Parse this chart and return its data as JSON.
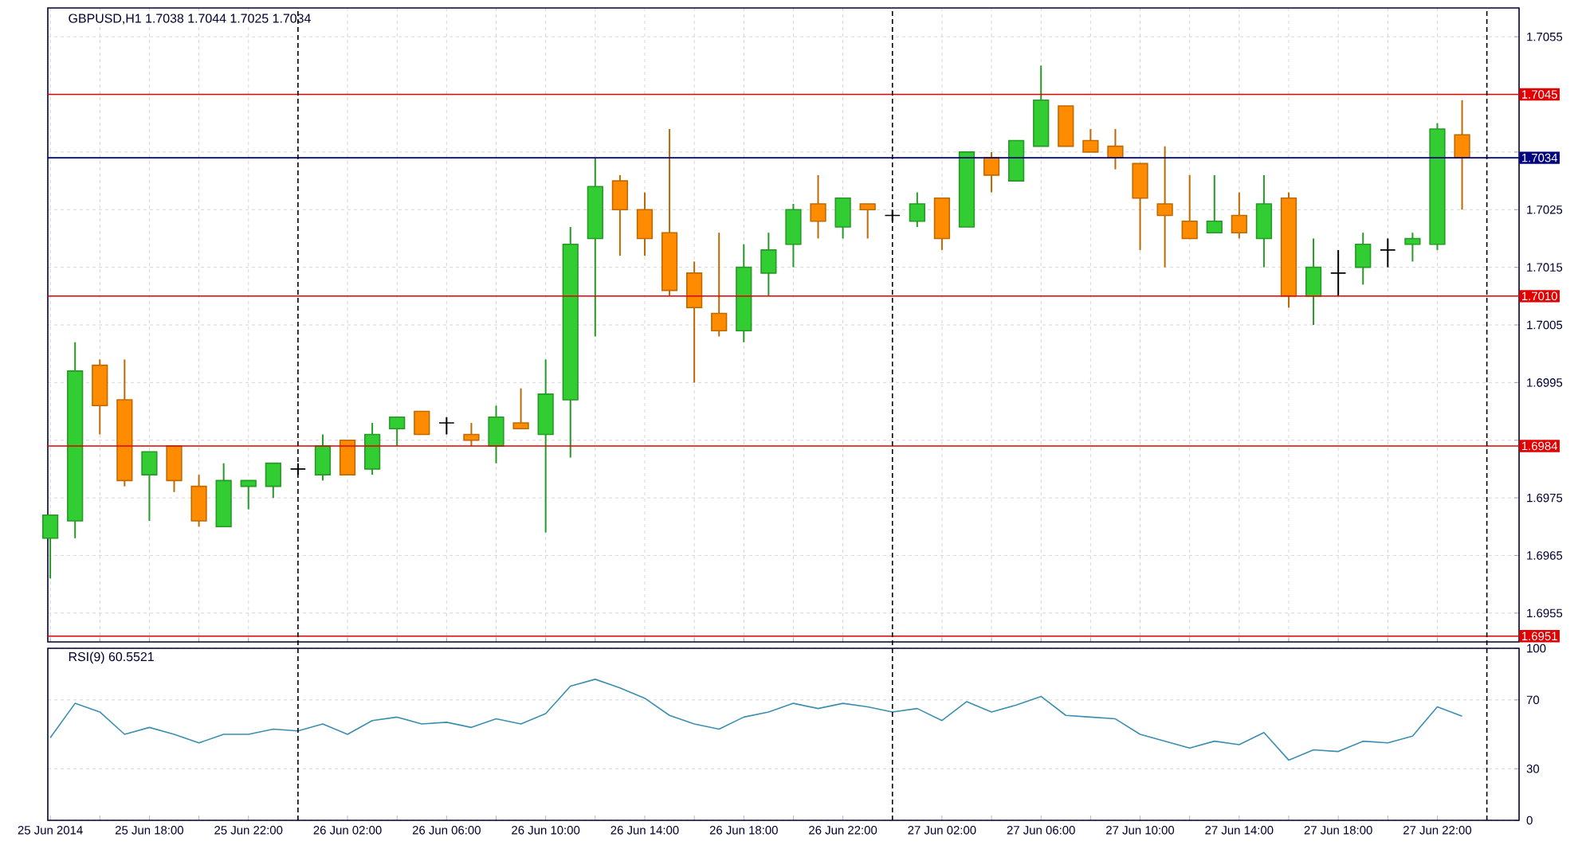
{
  "chart_data": [
    {
      "type": "candlestick",
      "title": "GBPUSD,H1  1.7038 1.7044 1.7025 1.7034",
      "x": [
        "2014-06-25T14:00",
        "2014-06-25T15:00",
        "2014-06-25T16:00",
        "2014-06-25T17:00",
        "2014-06-25T18:00",
        "2014-06-25T19:00",
        "2014-06-25T20:00",
        "2014-06-25T21:00",
        "2014-06-25T22:00",
        "2014-06-25T23:00",
        "2014-06-26T00:00",
        "2014-06-26T01:00",
        "2014-06-26T02:00",
        "2014-06-26T03:00",
        "2014-06-26T04:00",
        "2014-06-26T05:00",
        "2014-06-26T06:00",
        "2014-06-26T07:00",
        "2014-06-26T08:00",
        "2014-06-26T09:00",
        "2014-06-26T10:00",
        "2014-06-26T11:00",
        "2014-06-26T12:00",
        "2014-06-26T13:00",
        "2014-06-26T14:00",
        "2014-06-26T15:00",
        "2014-06-26T16:00",
        "2014-06-26T17:00",
        "2014-06-26T18:00",
        "2014-06-26T19:00",
        "2014-06-26T20:00",
        "2014-06-26T21:00",
        "2014-06-26T22:00",
        "2014-06-26T23:00",
        "2014-06-27T00:00",
        "2014-06-27T01:00",
        "2014-06-27T02:00",
        "2014-06-27T03:00",
        "2014-06-27T04:00",
        "2014-06-27T05:00",
        "2014-06-27T06:00",
        "2014-06-27T07:00",
        "2014-06-27T08:00",
        "2014-06-27T09:00",
        "2014-06-27T10:00",
        "2014-06-27T11:00",
        "2014-06-27T12:00",
        "2014-06-27T13:00",
        "2014-06-27T14:00",
        "2014-06-27T15:00",
        "2014-06-27T16:00",
        "2014-06-27T17:00",
        "2014-06-27T18:00",
        "2014-06-27T19:00",
        "2014-06-27T20:00",
        "2014-06-27T21:00",
        "2014-06-27T22:00",
        "2014-06-27T23:00"
      ],
      "ohlc": [
        [
          1.6968,
          1.6972,
          1.6961,
          1.6972
        ],
        [
          1.6971,
          1.7002,
          1.6968,
          1.6997
        ],
        [
          1.6998,
          1.6999,
          1.6986,
          1.6991
        ],
        [
          1.6992,
          1.6999,
          1.6977,
          1.6978
        ],
        [
          1.6979,
          1.6983,
          1.6971,
          1.6983
        ],
        [
          1.6984,
          1.6984,
          1.6976,
          1.6978
        ],
        [
          1.6977,
          1.6979,
          1.697,
          1.6971
        ],
        [
          1.697,
          1.6981,
          1.697,
          1.6978
        ],
        [
          1.6977,
          1.6978,
          1.6973,
          1.6978
        ],
        [
          1.6977,
          1.6981,
          1.6975,
          1.6981
        ],
        [
          1.698,
          1.6981,
          1.6979,
          1.698
        ],
        [
          1.6979,
          1.6986,
          1.6978,
          1.6984
        ],
        [
          1.6985,
          1.6985,
          1.6979,
          1.6979
        ],
        [
          1.698,
          1.6988,
          1.6979,
          1.6986
        ],
        [
          1.6987,
          1.6989,
          1.6984,
          1.6989
        ],
        [
          1.699,
          1.699,
          1.6986,
          1.6986
        ],
        [
          1.6988,
          1.6989,
          1.6986,
          1.6988
        ],
        [
          1.6986,
          1.6988,
          1.6984,
          1.6985
        ],
        [
          1.6984,
          1.6991,
          1.6981,
          1.6989
        ],
        [
          1.6988,
          1.6994,
          1.6987,
          1.6987
        ],
        [
          1.6986,
          1.6999,
          1.6969,
          1.6993
        ],
        [
          1.6992,
          1.7022,
          1.6982,
          1.7019
        ],
        [
          1.702,
          1.7034,
          1.7003,
          1.7029
        ],
        [
          1.703,
          1.7031,
          1.7017,
          1.7025
        ],
        [
          1.7025,
          1.7028,
          1.7017,
          1.702
        ],
        [
          1.7021,
          1.7039,
          1.701,
          1.7011
        ],
        [
          1.7014,
          1.7016,
          1.6995,
          1.7008
        ],
        [
          1.7007,
          1.7021,
          1.7003,
          1.7004
        ],
        [
          1.7004,
          1.7019,
          1.7002,
          1.7015
        ],
        [
          1.7014,
          1.7021,
          1.701,
          1.7018
        ],
        [
          1.7019,
          1.7026,
          1.7015,
          1.7025
        ],
        [
          1.7026,
          1.7031,
          1.702,
          1.7023
        ],
        [
          1.7022,
          1.7027,
          1.702,
          1.7027
        ],
        [
          1.7026,
          1.7026,
          1.702,
          1.7025
        ],
        [
          1.7024,
          1.7025,
          1.7023,
          1.7024
        ],
        [
          1.7023,
          1.7028,
          1.7022,
          1.7026
        ],
        [
          1.7027,
          1.7027,
          1.7018,
          1.702
        ],
        [
          1.7022,
          1.7035,
          1.7022,
          1.7035
        ],
        [
          1.7034,
          1.7035,
          1.7028,
          1.7031
        ],
        [
          1.703,
          1.7037,
          1.703,
          1.7037
        ],
        [
          1.7036,
          1.705,
          1.7036,
          1.7044
        ],
        [
          1.7043,
          1.7043,
          1.7036,
          1.7036
        ],
        [
          1.7037,
          1.7039,
          1.7035,
          1.7035
        ],
        [
          1.7036,
          1.7039,
          1.7032,
          1.7034
        ],
        [
          1.7033,
          1.7033,
          1.7018,
          1.7027
        ],
        [
          1.7026,
          1.7036,
          1.7015,
          1.7024
        ],
        [
          1.7023,
          1.7031,
          1.702,
          1.702
        ],
        [
          1.7021,
          1.7031,
          1.7021,
          1.7023
        ],
        [
          1.7024,
          1.7028,
          1.702,
          1.7021
        ],
        [
          1.702,
          1.7031,
          1.7015,
          1.7026
        ],
        [
          1.7027,
          1.7028,
          1.7008,
          1.701
        ],
        [
          1.701,
          1.702,
          1.7005,
          1.7015
        ],
        [
          1.7014,
          1.7018,
          1.701,
          1.7014
        ],
        [
          1.7015,
          1.7021,
          1.7012,
          1.7019
        ],
        [
          1.7018,
          1.702,
          1.7015,
          1.7018
        ],
        [
          1.7019,
          1.7021,
          1.7016,
          1.702
        ],
        [
          1.7019,
          1.704,
          1.7018,
          1.7039
        ],
        [
          1.7038,
          1.7044,
          1.7025,
          1.7034
        ]
      ],
      "colors": [
        "#32cd32",
        "#32cd32",
        "#ff8c00",
        "#ff8c00",
        "#32cd32",
        "#ff8c00",
        "#ff8c00",
        "#32cd32",
        "#32cd32",
        "#32cd32",
        "#000000",
        "#32cd32",
        "#ff8c00",
        "#32cd32",
        "#32cd32",
        "#ff8c00",
        "#000000",
        "#ff8c00",
        "#32cd32",
        "#ff8c00",
        "#32cd32",
        "#32cd32",
        "#32cd32",
        "#ff8c00",
        "#ff8c00",
        "#ff8c00",
        "#ff8c00",
        "#ff8c00",
        "#32cd32",
        "#32cd32",
        "#32cd32",
        "#ff8c00",
        "#32cd32",
        "#ff8c00",
        "#000000",
        "#32cd32",
        "#ff8c00",
        "#32cd32",
        "#ff8c00",
        "#32cd32",
        "#32cd32",
        "#ff8c00",
        "#ff8c00",
        "#ff8c00",
        "#ff8c00",
        "#ff8c00",
        "#ff8c00",
        "#32cd32",
        "#ff8c00",
        "#32cd32",
        "#ff8c00",
        "#32cd32",
        "#000000",
        "#32cd32",
        "#000000",
        "#32cd32",
        "#32cd32",
        "#ff8c00"
      ],
      "xlim": [
        "2014-06-25T13:54",
        "2014-06-28T01:18"
      ],
      "ylim": [
        1.695,
        1.706
      ],
      "xticks": [
        {
          "value": "2014-06-25T14:00",
          "label": null
        },
        {
          "value": "2014-06-25T16:00",
          "label": null
        },
        {
          "value": "2014-06-25T18:00",
          "label": null
        },
        {
          "value": "2014-06-25T20:00",
          "label": null
        },
        {
          "value": "2014-06-25T22:00",
          "label": null
        },
        {
          "value": "2014-06-26T02:00",
          "label": null
        },
        {
          "value": "2014-06-26T04:00",
          "label": null
        },
        {
          "value": "2014-06-26T06:00",
          "label": null
        },
        {
          "value": "2014-06-26T08:00",
          "label": null
        },
        {
          "value": "2014-06-26T10:00",
          "label": null
        },
        {
          "value": "2014-06-26T12:00",
          "label": null
        },
        {
          "value": "2014-06-26T14:00",
          "label": null
        },
        {
          "value": "2014-06-26T16:00",
          "label": null
        },
        {
          "value": "2014-06-26T18:00",
          "label": null
        },
        {
          "value": "2014-06-26T20:00",
          "label": null
        },
        {
          "value": "2014-06-26T22:00",
          "label": null
        },
        {
          "value": "2014-06-27T02:00",
          "label": null
        },
        {
          "value": "2014-06-27T04:00",
          "label": null
        },
        {
          "value": "2014-06-27T06:00",
          "label": null
        },
        {
          "value": "2014-06-27T08:00",
          "label": null
        },
        {
          "value": "2014-06-27T10:00",
          "label": null
        },
        {
          "value": "2014-06-27T12:00",
          "label": null
        },
        {
          "value": "2014-06-27T14:00",
          "label": null
        },
        {
          "value": "2014-06-27T16:00",
          "label": null
        },
        {
          "value": "2014-06-27T18:00",
          "label": null
        },
        {
          "value": "2014-06-27T20:00",
          "label": null
        },
        {
          "value": "2014-06-27T22:00",
          "label": null
        }
      ],
      "yticks": [
        1.6955,
        1.6965,
        1.6975,
        {
          "value": 1.6985,
          "label": null
        },
        1.6995,
        1.7005,
        1.7015,
        1.7025,
        {
          "value": 1.7035,
          "label": null
        },
        {
          "value": 1.7045,
          "label": null
        },
        1.7055
      ],
      "ref_lines": [
        {
          "axis": "y",
          "value": 1.7045,
          "label": "1.7045",
          "color": "#e00000"
        },
        {
          "axis": "y",
          "value": 1.7034,
          "label": "1.7034",
          "color": "#000080"
        },
        {
          "axis": "y",
          "value": 1.701,
          "label": "1.7010",
          "color": "#e00000"
        },
        {
          "axis": "y",
          "value": 1.6984,
          "label": "1.6984",
          "color": "#e00000"
        },
        {
          "axis": "y",
          "value": 1.6951,
          "label": "1.6951",
          "color": "#e00000"
        }
      ],
      "grid": true,
      "tick_labels": "y"
    },
    {
      "type": "line",
      "title": "RSI(9) 60.5521",
      "color": "#3a8fb0",
      "x": [
        "2014-06-25T14:00",
        "2014-06-25T15:00",
        "2014-06-25T16:00",
        "2014-06-25T17:00",
        "2014-06-25T18:00",
        "2014-06-25T19:00",
        "2014-06-25T20:00",
        "2014-06-25T21:00",
        "2014-06-25T22:00",
        "2014-06-25T23:00",
        "2014-06-26T00:00",
        "2014-06-26T01:00",
        "2014-06-26T02:00",
        "2014-06-26T03:00",
        "2014-06-26T04:00",
        "2014-06-26T05:00",
        "2014-06-26T06:00",
        "2014-06-26T07:00",
        "2014-06-26T08:00",
        "2014-06-26T09:00",
        "2014-06-26T10:00",
        "2014-06-26T11:00",
        "2014-06-26T12:00",
        "2014-06-26T13:00",
        "2014-06-26T14:00",
        "2014-06-26T15:00",
        "2014-06-26T16:00",
        "2014-06-26T17:00",
        "2014-06-26T18:00",
        "2014-06-26T19:00",
        "2014-06-26T20:00",
        "2014-06-26T21:00",
        "2014-06-26T22:00",
        "2014-06-26T23:00",
        "2014-06-27T00:00",
        "2014-06-27T01:00",
        "2014-06-27T02:00",
        "2014-06-27T03:00",
        "2014-06-27T04:00",
        "2014-06-27T05:00",
        "2014-06-27T06:00",
        "2014-06-27T07:00",
        "2014-06-27T08:00",
        "2014-06-27T09:00",
        "2014-06-27T10:00",
        "2014-06-27T11:00",
        "2014-06-27T12:00",
        "2014-06-27T13:00",
        "2014-06-27T14:00",
        "2014-06-27T15:00",
        "2014-06-27T16:00",
        "2014-06-27T17:00",
        "2014-06-27T18:00",
        "2014-06-27T19:00",
        "2014-06-27T20:00",
        "2014-06-27T21:00",
        "2014-06-27T22:00",
        "2014-06-27T23:00"
      ],
      "values": [
        48,
        68,
        63,
        50,
        54,
        50,
        45,
        50,
        50,
        53,
        52,
        56,
        50,
        58,
        60,
        56,
        57,
        54,
        59,
        56,
        62,
        78,
        82,
        77,
        71,
        61,
        56,
        53,
        60,
        63,
        68,
        65,
        68,
        66,
        63,
        65,
        58,
        69,
        63,
        67,
        72,
        61,
        60,
        59,
        50,
        46,
        42,
        46,
        44,
        51,
        35,
        41,
        40,
        46,
        45,
        49,
        66,
        60.5521
      ],
      "xlim": [
        "2014-06-25T13:54",
        "2014-06-28T01:18"
      ],
      "ylim": [
        0,
        100
      ],
      "xticks": [
        {
          "value": "2014-06-25T14:00",
          "label": "25 Jun 2014"
        },
        {
          "value": "2014-06-25T16:00",
          "label": null
        },
        {
          "value": "2014-06-25T18:00",
          "label": "25 Jun 18:00"
        },
        {
          "value": "2014-06-25T20:00",
          "label": null
        },
        {
          "value": "2014-06-25T22:00",
          "label": "25 Jun 22:00"
        },
        {
          "value": "2014-06-26T00:00",
          "label": null
        },
        {
          "value": "2014-06-26T02:00",
          "label": "26 Jun 02:00"
        },
        {
          "value": "2014-06-26T04:00",
          "label": null
        },
        {
          "value": "2014-06-26T06:00",
          "label": "26 Jun 06:00"
        },
        {
          "value": "2014-06-26T08:00",
          "label": null
        },
        {
          "value": "2014-06-26T10:00",
          "label": "26 Jun 10:00"
        },
        {
          "value": "2014-06-26T12:00",
          "label": null
        },
        {
          "value": "2014-06-26T14:00",
          "label": "26 Jun 14:00"
        },
        {
          "value": "2014-06-26T16:00",
          "label": null
        },
        {
          "value": "2014-06-26T18:00",
          "label": "26 Jun 18:00"
        },
        {
          "value": "2014-06-26T20:00",
          "label": null
        },
        {
          "value": "2014-06-26T22:00",
          "label": "26 Jun 22:00"
        },
        {
          "value": "2014-06-27T00:00",
          "label": null
        },
        {
          "value": "2014-06-27T02:00",
          "label": "27 Jun 02:00"
        },
        {
          "value": "2014-06-27T04:00",
          "label": null
        },
        {
          "value": "2014-06-27T06:00",
          "label": "27 Jun 06:00"
        },
        {
          "value": "2014-06-27T08:00",
          "label": null
        },
        {
          "value": "2014-06-27T10:00",
          "label": "27 Jun 10:00"
        },
        {
          "value": "2014-06-27T12:00",
          "label": null
        },
        {
          "value": "2014-06-27T14:00",
          "label": "27 Jun 14:00"
        },
        {
          "value": "2014-06-27T16:00",
          "label": null
        },
        {
          "value": "2014-06-27T18:00",
          "label": "27 Jun 18:00"
        },
        {
          "value": "2014-06-27T20:00",
          "label": null
        },
        {
          "value": "2014-06-27T22:00",
          "label": "27 Jun 22:00"
        },
        {
          "value": "2014-06-28T00:00",
          "label": null
        }
      ],
      "yticks": [
        0,
        30,
        70,
        100
      ],
      "ref_lines": [
        {
          "axis": "x",
          "value": "2014-06-26T00:00",
          "color": "#000000",
          "line_style": "dashed"
        },
        {
          "axis": "x",
          "value": "2014-06-27T00:00",
          "color": "#000000",
          "line_style": "dashed"
        },
        {
          "axis": "x",
          "value": "2014-06-28T00:00",
          "color": "#000000",
          "line_style": "dashed"
        }
      ],
      "grid": "y"
    }
  ]
}
